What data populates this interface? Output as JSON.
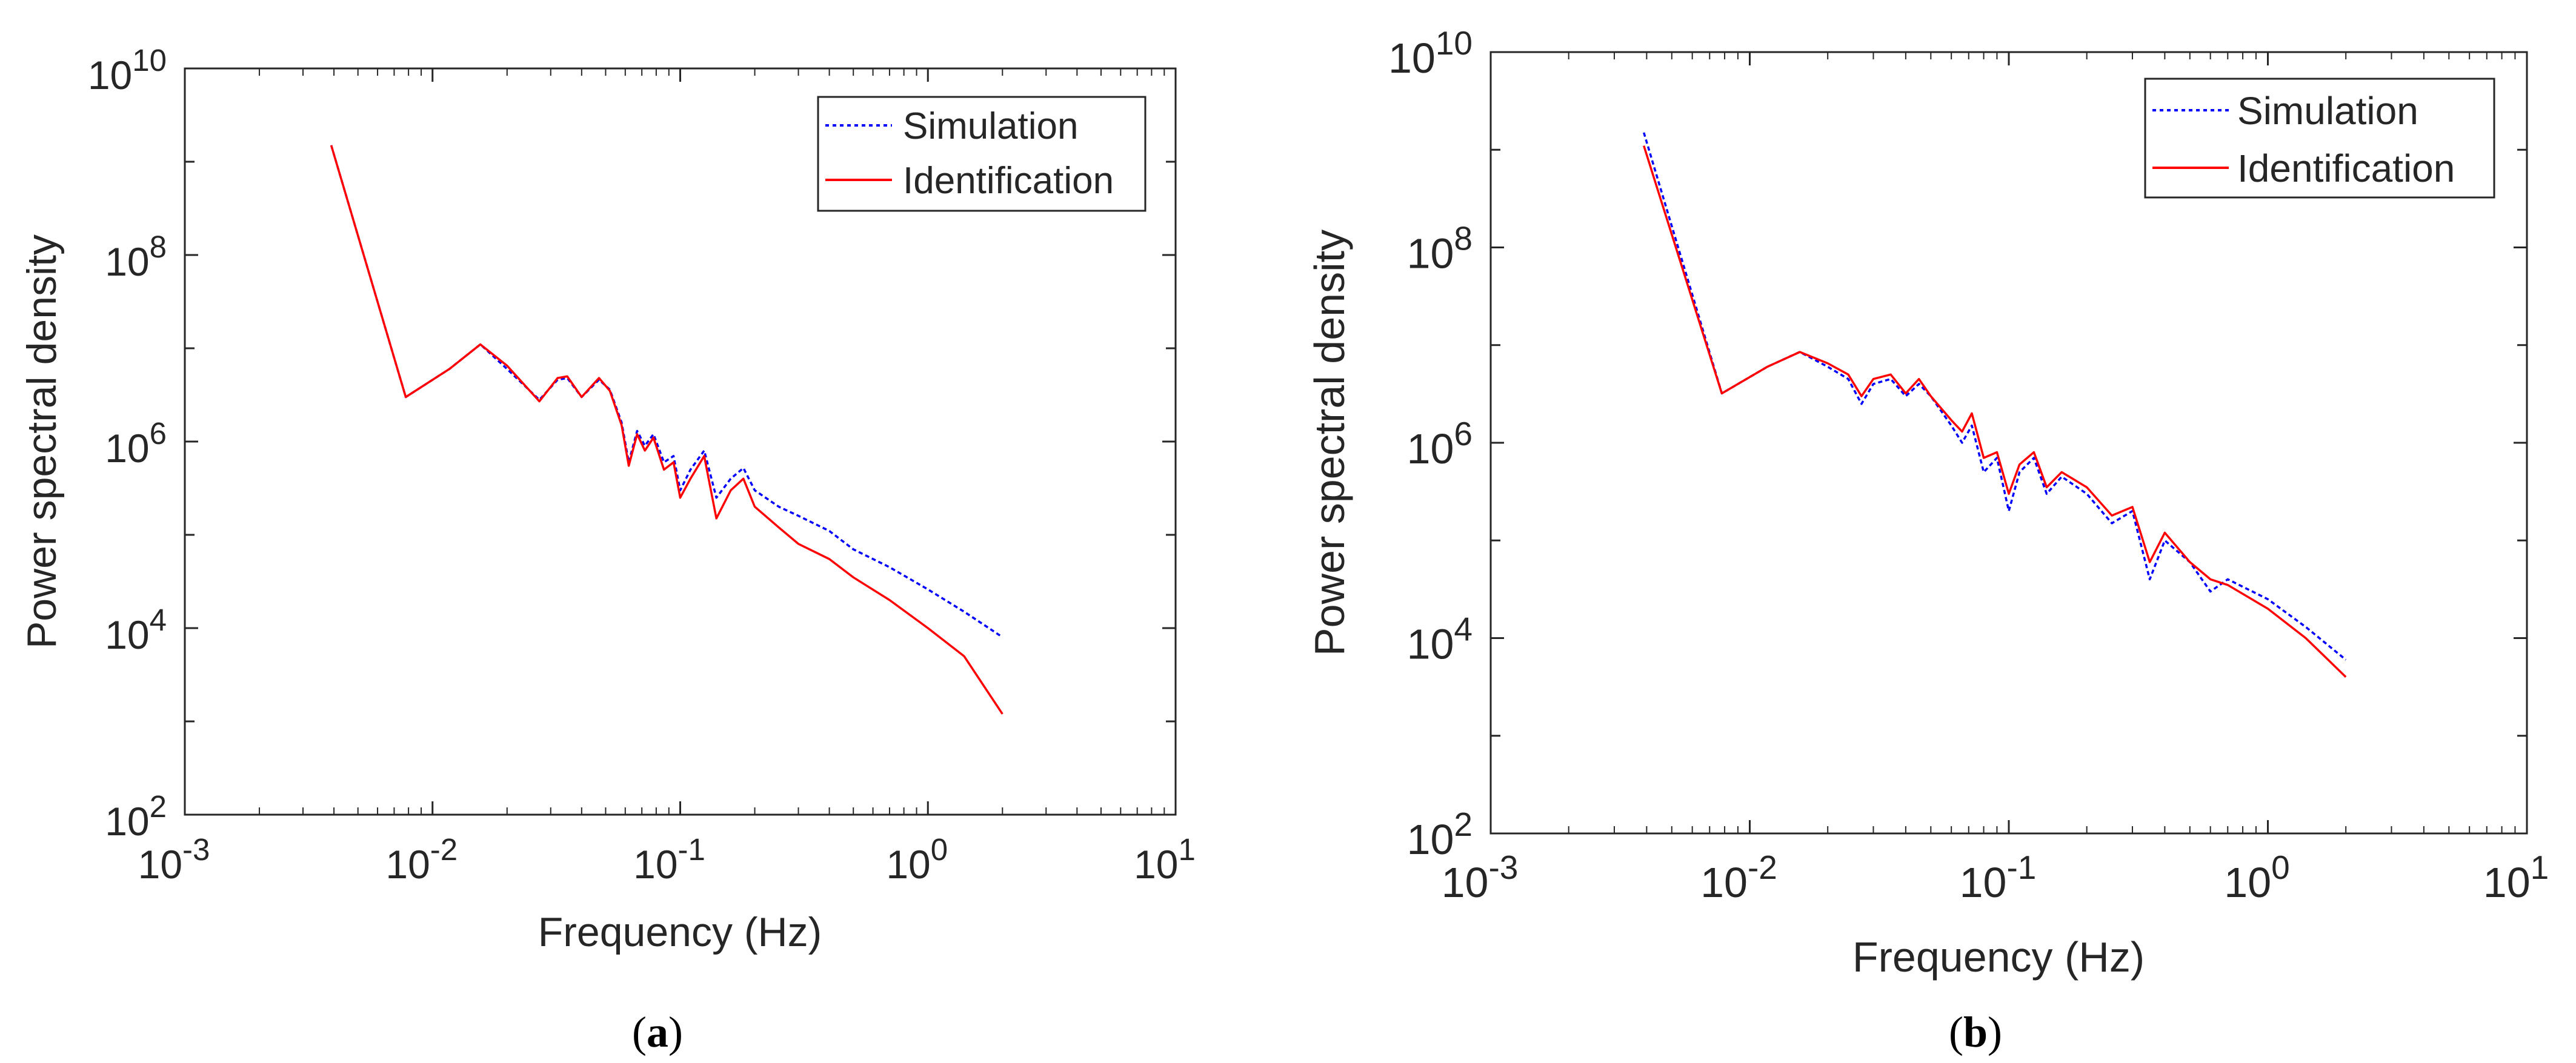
{
  "chart_data": [
    {
      "type": "line",
      "panel_label": "a",
      "title": "",
      "xlabel": "Frequency (Hz)",
      "ylabel": "Power spectral density",
      "xscale": "log",
      "yscale": "log",
      "xlim": [
        0.001,
        10
      ],
      "ylim": [
        100,
        10000000000
      ],
      "x_tick_labels": [
        {
          "base": "10",
          "exp": "-3"
        },
        {
          "base": "10",
          "exp": "-2"
        },
        {
          "base": "10",
          "exp": "-1"
        },
        {
          "base": "10",
          "exp": "0"
        },
        {
          "base": "10",
          "exp": "1"
        }
      ],
      "y_tick_labels": [
        {
          "base": "10",
          "exp": "2"
        },
        {
          "base": "10",
          "exp": "4"
        },
        {
          "base": "10",
          "exp": "6"
        },
        {
          "base": "10",
          "exp": "8"
        },
        {
          "base": "10",
          "exp": "10"
        }
      ],
      "legend_position": "top-right",
      "series": [
        {
          "name": "Simulation",
          "color": "#0000ff",
          "style": "dotted",
          "points": [
            [
              0.0039,
              1500000000.0
            ],
            [
              0.0078,
              3000000.0
            ],
            [
              0.0117,
              6000000.0
            ],
            [
              0.0156,
              11000000.0
            ],
            [
              0.02,
              6000000.0
            ],
            [
              0.027,
              2800000.0
            ],
            [
              0.032,
              4600000.0
            ],
            [
              0.035,
              4800000.0
            ],
            [
              0.04,
              3000000.0
            ],
            [
              0.047,
              4600000.0
            ],
            [
              0.052,
              3600000.0
            ],
            [
              0.058,
              1600000.0
            ],
            [
              0.062,
              600000.0
            ],
            [
              0.067,
              1300000.0
            ],
            [
              0.072,
              900000.0
            ],
            [
              0.078,
              1200000.0
            ],
            [
              0.086,
              600000.0
            ],
            [
              0.094,
              700000.0
            ],
            [
              0.1,
              300000.0
            ],
            [
              0.11,
              500000.0
            ],
            [
              0.125,
              800000.0
            ],
            [
              0.14,
              250000.0
            ],
            [
              0.16,
              400000.0
            ],
            [
              0.18,
              520000.0
            ],
            [
              0.2,
              300000.0
            ],
            [
              0.25,
              200000.0
            ],
            [
              0.3,
              160000.0
            ],
            [
              0.4,
              110000.0
            ],
            [
              0.5,
              70000.0
            ],
            [
              0.7,
              45000.0
            ],
            [
              1.0,
              26000.0
            ],
            [
              1.4,
              15000.0
            ],
            [
              2.0,
              8000.0
            ]
          ]
        },
        {
          "name": "Identification",
          "color": "#ff0000",
          "style": "solid",
          "points": [
            [
              0.0039,
              1500000000.0
            ],
            [
              0.0078,
              3000000.0
            ],
            [
              0.0117,
              6000000.0
            ],
            [
              0.0156,
              11000000.0
            ],
            [
              0.02,
              6500000.0
            ],
            [
              0.027,
              2700000.0
            ],
            [
              0.032,
              4800000.0
            ],
            [
              0.035,
              5000000.0
            ],
            [
              0.04,
              3000000.0
            ],
            [
              0.047,
              4800000.0
            ],
            [
              0.052,
              3500000.0
            ],
            [
              0.058,
              1500000.0
            ],
            [
              0.062,
              550000.0
            ],
            [
              0.067,
              1200000.0
            ],
            [
              0.072,
              800000.0
            ],
            [
              0.078,
              1100000.0
            ],
            [
              0.086,
              500000.0
            ],
            [
              0.094,
              600000.0
            ],
            [
              0.1,
              250000.0
            ],
            [
              0.11,
              400000.0
            ],
            [
              0.125,
              700000.0
            ],
            [
              0.14,
              150000.0
            ],
            [
              0.16,
              300000.0
            ],
            [
              0.18,
              400000.0
            ],
            [
              0.2,
              200000.0
            ],
            [
              0.25,
              120000.0
            ],
            [
              0.3,
              80000.0
            ],
            [
              0.4,
              55000.0
            ],
            [
              0.5,
              35000.0
            ],
            [
              0.7,
              20000.0
            ],
            [
              1.0,
              10000.0
            ],
            [
              1.4,
              5000.0
            ],
            [
              2.0,
              1200.0
            ]
          ]
        }
      ]
    },
    {
      "type": "line",
      "panel_label": "b",
      "title": "",
      "xlabel": "Frequency (Hz)",
      "ylabel": "Power spectral density",
      "xscale": "log",
      "yscale": "log",
      "xlim": [
        0.001,
        10
      ],
      "ylim": [
        100,
        10000000000
      ],
      "x_tick_labels": [
        {
          "base": "10",
          "exp": "-3"
        },
        {
          "base": "10",
          "exp": "-2"
        },
        {
          "base": "10",
          "exp": "-1"
        },
        {
          "base": "10",
          "exp": "0"
        },
        {
          "base": "10",
          "exp": "1"
        }
      ],
      "y_tick_labels": [
        {
          "base": "10",
          "exp": "2"
        },
        {
          "base": "10",
          "exp": "4"
        },
        {
          "base": "10",
          "exp": "6"
        },
        {
          "base": "10",
          "exp": "8"
        },
        {
          "base": "10",
          "exp": "10"
        }
      ],
      "legend_position": "top-right",
      "series": [
        {
          "name": "Simulation",
          "color": "#0000ff",
          "style": "dotted",
          "points": [
            [
              0.0039,
              1500000000.0
            ],
            [
              0.0078,
              3200000.0
            ],
            [
              0.0117,
              6000000.0
            ],
            [
              0.0156,
              8500000.0
            ],
            [
              0.02,
              6000000.0
            ],
            [
              0.024,
              4500000.0
            ],
            [
              0.027,
              2500000.0
            ],
            [
              0.03,
              4000000.0
            ],
            [
              0.035,
              4500000.0
            ],
            [
              0.04,
              3000000.0
            ],
            [
              0.045,
              4000000.0
            ],
            [
              0.05,
              3000000.0
            ],
            [
              0.06,
              1500000.0
            ],
            [
              0.066,
              1000000.0
            ],
            [
              0.072,
              1500000.0
            ],
            [
              0.08,
              500000.0
            ],
            [
              0.09,
              700000.0
            ],
            [
              0.1,
              200000.0
            ],
            [
              0.11,
              500000.0
            ],
            [
              0.125,
              700000.0
            ],
            [
              0.14,
              300000.0
            ],
            [
              0.16,
              450000.0
            ],
            [
              0.2,
              300000.0
            ],
            [
              0.25,
              150000.0
            ],
            [
              0.3,
              200000.0
            ],
            [
              0.35,
              40000.0
            ],
            [
              0.4,
              100000.0
            ],
            [
              0.5,
              60000.0
            ],
            [
              0.6,
              30000.0
            ],
            [
              0.7,
              40000.0
            ],
            [
              1.0,
              25000.0
            ],
            [
              1.4,
              13000.0
            ],
            [
              2.0,
              6000.0
            ]
          ]
        },
        {
          "name": "Identification",
          "color": "#ff0000",
          "style": "solid",
          "points": [
            [
              0.0039,
              1100000000.0
            ],
            [
              0.0078,
              3200000.0
            ],
            [
              0.0117,
              6000000.0
            ],
            [
              0.0156,
              8500000.0
            ],
            [
              0.02,
              6500000.0
            ],
            [
              0.024,
              5000000.0
            ],
            [
              0.027,
              3000000.0
            ],
            [
              0.03,
              4500000.0
            ],
            [
              0.035,
              5000000.0
            ],
            [
              0.04,
              3200000.0
            ],
            [
              0.045,
              4500000.0
            ],
            [
              0.05,
              3000000.0
            ],
            [
              0.06,
              1700000.0
            ],
            [
              0.066,
              1300000.0
            ],
            [
              0.072,
              2000000.0
            ],
            [
              0.08,
              700000.0
            ],
            [
              0.09,
              800000.0
            ],
            [
              0.1,
              300000.0
            ],
            [
              0.11,
              600000.0
            ],
            [
              0.125,
              800000.0
            ],
            [
              0.14,
              350000.0
            ],
            [
              0.16,
              500000.0
            ],
            [
              0.2,
              350000.0
            ],
            [
              0.25,
              180000.0
            ],
            [
              0.3,
              220000.0
            ],
            [
              0.35,
              60000.0
            ],
            [
              0.4,
              120000.0
            ],
            [
              0.5,
              60000.0
            ],
            [
              0.6,
              40000.0
            ],
            [
              0.7,
              35000.0
            ],
            [
              1.0,
              20000.0
            ],
            [
              1.4,
              10000.0
            ],
            [
              2.0,
              4000.0
            ]
          ]
        }
      ]
    }
  ]
}
